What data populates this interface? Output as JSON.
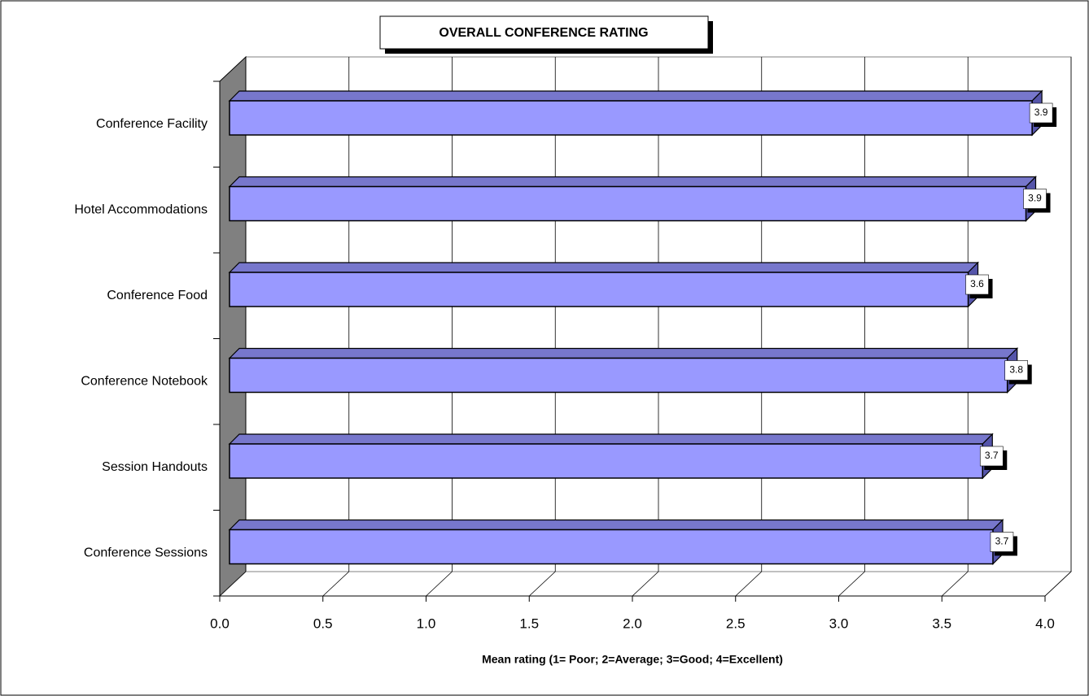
{
  "chart_data": {
    "type": "bar3d-horizontal",
    "title": "OVERALL CONFERENCE RATING",
    "x_label": "Mean rating (1= Poor; 2=Average; 3=Good; 4=Excellent)",
    "categories": [
      "Conference Facility",
      "Hotel Accommodations",
      "Conference Food",
      "Conference Notebook",
      "Session Handouts",
      "Conference Sessions"
    ],
    "values": [
      3.89,
      3.86,
      3.58,
      3.77,
      3.65,
      3.7
    ],
    "value_labels": [
      "3.9",
      "3.9",
      "3.6",
      "3.8",
      "3.7",
      "3.7"
    ],
    "color": "#9999ff",
    "xlim": [
      0,
      4
    ],
    "xticks": [
      {
        "value": 0,
        "label": "0.0"
      },
      0.5,
      {
        "value": 1,
        "label": "1.0"
      },
      1.5,
      {
        "value": 2,
        "label": "2.0"
      },
      2.5,
      {
        "value": 3,
        "label": "3.0"
      },
      3.5,
      {
        "value": 4,
        "label": "4.0"
      }
    ],
    "grid": true
  }
}
